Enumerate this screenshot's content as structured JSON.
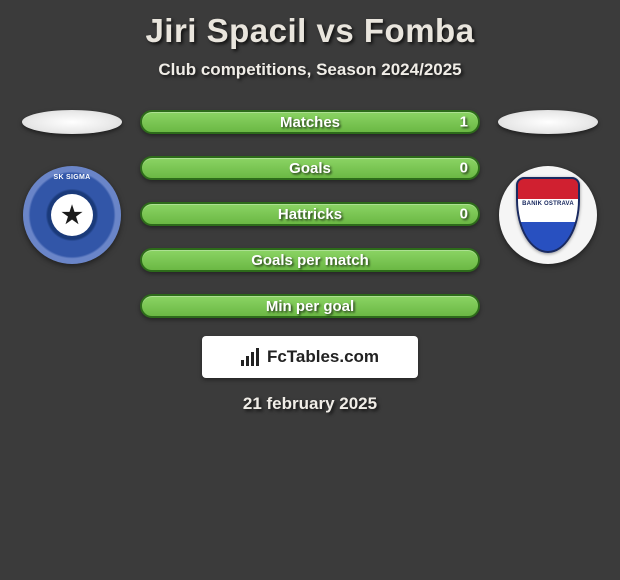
{
  "title": "Jiri Spacil vs Fomba",
  "subtitle": "Club competitions, Season 2024/2025",
  "colors": {
    "background": "#3b3b3b",
    "text": "#f0ede7",
    "bar_fill_top": "#8bd464",
    "bar_fill_bottom": "#6bb844",
    "bar_border": "#2d6b1a"
  },
  "players": {
    "left": {
      "club_name": "SK Sigma Olomouc",
      "club_colors": {
        "primary": "#1a3a7a",
        "secondary": "#6a85c8",
        "inner": "#ffffff"
      },
      "club_label_top": "SK SIGMA"
    },
    "right": {
      "club_name": "FC Banik Ostrava",
      "club_colors": {
        "red": "#d02030",
        "white": "#ffffff",
        "blue": "#2850c0"
      },
      "shield_text": "BANIK OSTRAVA"
    }
  },
  "stats": [
    {
      "label": "Matches",
      "value": "1"
    },
    {
      "label": "Goals",
      "value": "0"
    },
    {
      "label": "Hattricks",
      "value": "0"
    },
    {
      "label": "Goals per match",
      "value": ""
    },
    {
      "label": "Min per goal",
      "value": ""
    }
  ],
  "brand": "FcTables.com",
  "date": "21 february 2025"
}
